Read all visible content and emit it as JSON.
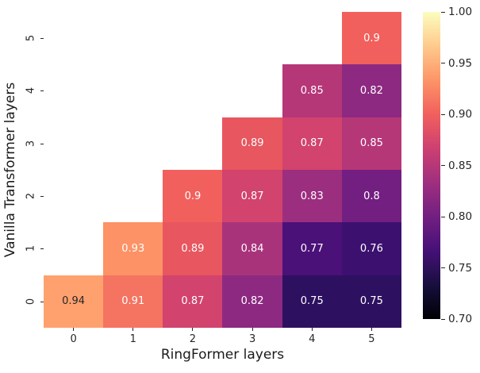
{
  "chart_data": {
    "type": "heatmap",
    "title": "",
    "xlabel": "RingFormer layers",
    "ylabel": "Vanilla Transformer layers",
    "x_tick_labels": [
      "0",
      "1",
      "2",
      "3",
      "4",
      "5"
    ],
    "y_tick_labels_top_to_bottom": [
      "5",
      "4",
      "3",
      "2",
      "1",
      "0"
    ],
    "colormap": "magma",
    "vmin": 0.7,
    "vmax": 1.0,
    "grid": "off",
    "legend_position": "colorbar-right",
    "matrix_rows_top_to_bottom": [
      {
        "y": "5",
        "values": [
          null,
          null,
          null,
          null,
          null,
          0.9
        ]
      },
      {
        "y": "4",
        "values": [
          null,
          null,
          null,
          null,
          0.85,
          0.82
        ]
      },
      {
        "y": "3",
        "values": [
          null,
          null,
          null,
          0.89,
          0.87,
          0.85
        ]
      },
      {
        "y": "2",
        "values": [
          null,
          null,
          0.9,
          0.87,
          0.83,
          0.8
        ]
      },
      {
        "y": "1",
        "values": [
          null,
          0.93,
          0.89,
          0.84,
          0.77,
          0.76
        ]
      },
      {
        "y": "0",
        "values": [
          0.94,
          0.91,
          0.87,
          0.82,
          0.75,
          0.75
        ]
      }
    ],
    "cells": [
      {
        "row": 0,
        "col": 5,
        "label": "0.9",
        "bg": "#f1605d",
        "fg": "#ffffff"
      },
      {
        "row": 1,
        "col": 4,
        "label": "0.85",
        "bg": "#b63778",
        "fg": "#ffffff"
      },
      {
        "row": 1,
        "col": 5,
        "label": "0.82",
        "bg": "#8d2981",
        "fg": "#ffffff"
      },
      {
        "row": 2,
        "col": 3,
        "label": "0.89",
        "bg": "#e8565f",
        "fg": "#ffffff"
      },
      {
        "row": 2,
        "col": 4,
        "label": "0.87",
        "bg": "#d2436e",
        "fg": "#ffffff"
      },
      {
        "row": 2,
        "col": 5,
        "label": "0.85",
        "bg": "#b63778",
        "fg": "#ffffff"
      },
      {
        "row": 3,
        "col": 2,
        "label": "0.9",
        "bg": "#f1605d",
        "fg": "#ffffff"
      },
      {
        "row": 3,
        "col": 3,
        "label": "0.87",
        "bg": "#d2436e",
        "fg": "#ffffff"
      },
      {
        "row": 3,
        "col": 4,
        "label": "0.83",
        "bg": "#9c2e7f",
        "fg": "#ffffff"
      },
      {
        "row": 3,
        "col": 5,
        "label": "0.8",
        "bg": "#721f81",
        "fg": "#ffffff"
      },
      {
        "row": 4,
        "col": 1,
        "label": "0.93",
        "bg": "#fc9266",
        "fg": "#ffffff"
      },
      {
        "row": 4,
        "col": 2,
        "label": "0.89",
        "bg": "#e8565f",
        "fg": "#ffffff"
      },
      {
        "row": 4,
        "col": 3,
        "label": "0.84",
        "bg": "#a9337b",
        "fg": "#ffffff"
      },
      {
        "row": 4,
        "col": 4,
        "label": "0.77",
        "bg": "#4a1178",
        "fg": "#ffffff"
      },
      {
        "row": 4,
        "col": 5,
        "label": "0.76",
        "bg": "#3b106f",
        "fg": "#ffffff"
      },
      {
        "row": 5,
        "col": 0,
        "label": "0.94",
        "bg": "#fea16e",
        "fg": "#262626"
      },
      {
        "row": 5,
        "col": 1,
        "label": "0.91",
        "bg": "#f57361",
        "fg": "#ffffff"
      },
      {
        "row": 5,
        "col": 2,
        "label": "0.87",
        "bg": "#d2436e",
        "fg": "#ffffff"
      },
      {
        "row": 5,
        "col": 3,
        "label": "0.82",
        "bg": "#8d2981",
        "fg": "#ffffff"
      },
      {
        "row": 5,
        "col": 4,
        "label": "0.75",
        "bg": "#2e1060",
        "fg": "#ffffff"
      },
      {
        "row": 5,
        "col": 5,
        "label": "0.75",
        "bg": "#2e1060",
        "fg": "#ffffff"
      }
    ],
    "colorbar": {
      "tick_labels_top_to_bottom": [
        "1.00",
        "0.95",
        "0.90",
        "0.85",
        "0.80",
        "0.75",
        "0.70"
      ],
      "gradient_stops_bottom_to_top": [
        "#000004",
        "#180f3e",
        "#451077",
        "#721f81",
        "#9f2f7f",
        "#cd4071",
        "#f1605d",
        "#fd9567",
        "#feca8d",
        "#fcfdbf"
      ]
    }
  }
}
